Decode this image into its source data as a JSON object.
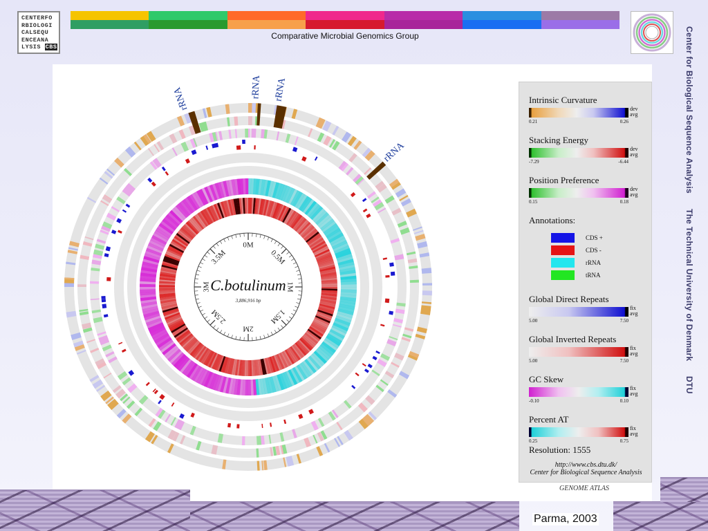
{
  "header": {
    "logo_lines": [
      "CENTERFO",
      "RBIOLOGI",
      "CALSEQU",
      "ENCEANA",
      "LYSIS"
    ],
    "logo_badge": "CBS",
    "group_title": "Comparative Microbial Genomics Group",
    "color_bar_top": [
      "#f5c400",
      "#2ec96a",
      "#ff6a2a",
      "#f0288c",
      "#b82ca8",
      "#2a8fe0",
      "#9c7aa6"
    ],
    "color_bar_bottom": [
      "#2f9e63",
      "#2a9a2e",
      "#f7a04a",
      "#d61a2e",
      "#a8249a",
      "#1a6ef2",
      "#9a6ee8"
    ]
  },
  "side": {
    "line1": "Center for Biological Sequence Analysis",
    "line2": "The Technical University of Denmark",
    "line3": "DTU"
  },
  "atlas": {
    "organism": "C.botulinum",
    "genome_size": "3,886,916 bp",
    "scale_labels": [
      "0M",
      "0.5M",
      "1M",
      "1.5M",
      "2M",
      "2.5M",
      "3M",
      "3.5M"
    ],
    "rrna_label": "rRNA",
    "caption": "GENOME ATLAS"
  },
  "legend": {
    "curvature": {
      "title": "Intrinsic Curvature",
      "min": "0.21",
      "max": "0.26",
      "unit1": "dev",
      "unit2": "avg"
    },
    "stacking": {
      "title": "Stacking Energy",
      "min": "-7.29",
      "max": "-6.44",
      "unit1": "dev",
      "unit2": "avg"
    },
    "position": {
      "title": "Position Preference",
      "min": "0.15",
      "max": "0.18",
      "unit1": "dev",
      "unit2": "avg"
    },
    "annotations": {
      "title": "Annotations:",
      "items": [
        {
          "label": "CDS +",
          "color": "#1414e6"
        },
        {
          "label": "CDS -",
          "color": "#e61414"
        },
        {
          "label": "rRNA",
          "color": "#22e6ee"
        },
        {
          "label": "tRNA",
          "color": "#22e622"
        }
      ]
    },
    "direct": {
      "title": "Global Direct Repeats",
      "min": "5.00",
      "max": "7.50",
      "unit1": "fix",
      "unit2": "avg"
    },
    "inverted": {
      "title": "Global Inverted Repeats",
      "min": "5.00",
      "max": "7.50",
      "unit1": "fix",
      "unit2": "avg"
    },
    "gcskew": {
      "title": "GC Skew",
      "min": "-0.10",
      "max": "0.10",
      "unit1": "fix",
      "unit2": "avg"
    },
    "percentat": {
      "title": "Percent AT",
      "min": "0.25",
      "max": "0.75",
      "unit1": "fix",
      "unit2": "avg"
    },
    "resolution": "Resolution: 1555",
    "url": "http://www.cbs.dtu.dk/",
    "center": "Center for Biological Sequence Analysis"
  },
  "footer": {
    "credit": "Parma, 2003"
  }
}
